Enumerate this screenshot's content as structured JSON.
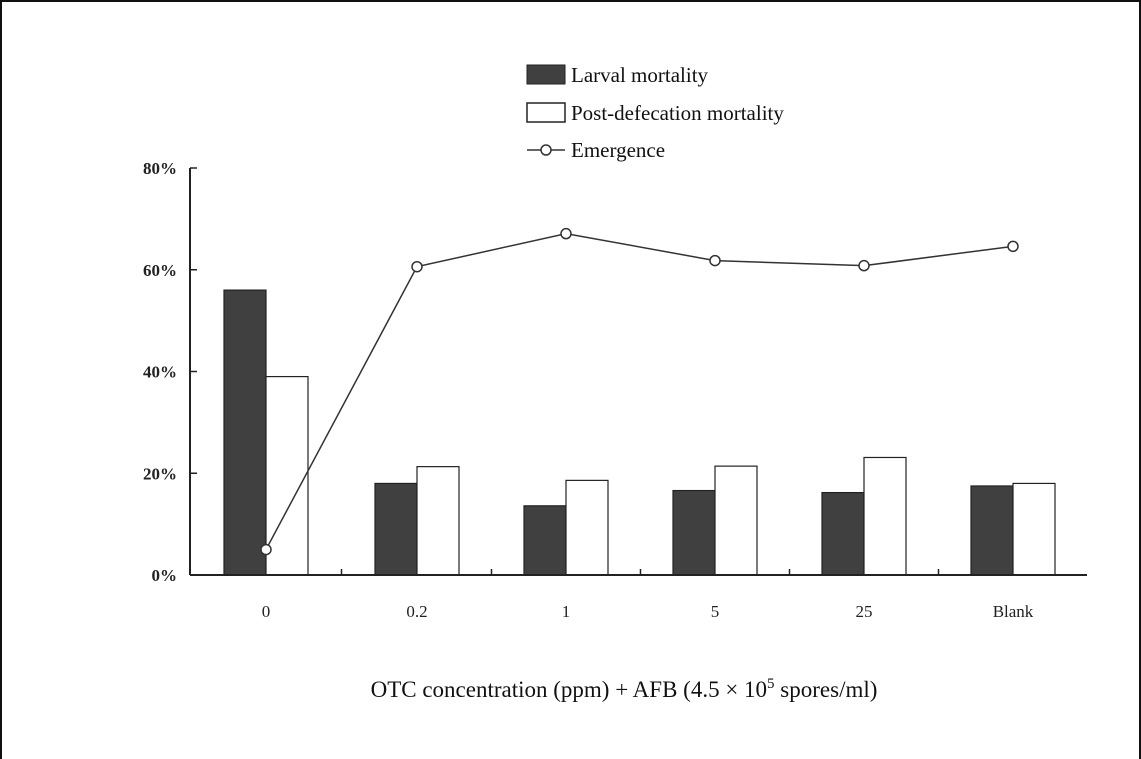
{
  "chart_data": {
    "type": "bar",
    "categories": [
      "0",
      "0.2",
      "1",
      "5",
      "25",
      "Blank"
    ],
    "series": [
      {
        "name": "Larval mortality",
        "kind": "bar",
        "color": "#404040",
        "values": [
          56,
          18,
          13.6,
          16.6,
          16.2,
          17.5
        ]
      },
      {
        "name": "Post-defecation mortality",
        "kind": "bar",
        "color": "#ffffff",
        "values": [
          39,
          21.3,
          18.6,
          21.4,
          23.1,
          18
        ]
      },
      {
        "name": "Emergence",
        "kind": "line",
        "marker": "open-circle",
        "color": "#333333",
        "values": [
          5,
          60.6,
          67.1,
          61.8,
          60.8,
          64.6
        ]
      }
    ],
    "xlabel_main": "OTC concentration (ppm) + AFB (4.5 × 10",
    "xlabel_sup": "5",
    "xlabel_tail": " spores/ml)",
    "ylabel": "",
    "ylim": [
      0,
      80
    ],
    "yticks": [
      0,
      20,
      40,
      60,
      80
    ],
    "ytick_labels": [
      "0%",
      "20%",
      "40%",
      "60%",
      "80%"
    ],
    "grid": false,
    "legend_position": "top-center"
  }
}
